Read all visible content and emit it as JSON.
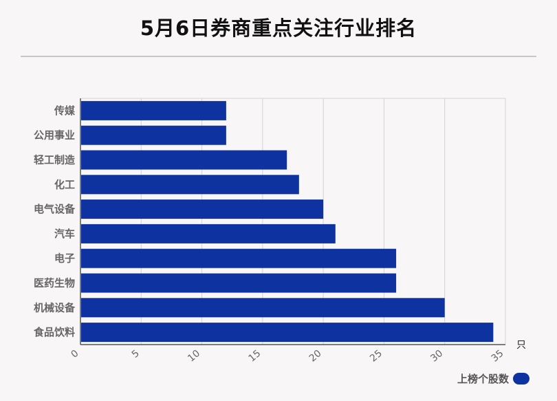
{
  "title": "5月6日券商重点关注行业排名",
  "chart_data": {
    "type": "bar",
    "orientation": "horizontal",
    "categories": [
      "传媒",
      "公用事业",
      "轻工制造",
      "化工",
      "电气设备",
      "汽车",
      "电子",
      "医药生物",
      "机械设备",
      "食品饮料"
    ],
    "series": [
      {
        "name": "上榜个股数",
        "values": [
          12,
          12,
          17,
          18,
          20,
          21,
          26,
          26,
          30,
          34
        ]
      }
    ],
    "xlim": [
      0,
      35
    ],
    "xticks": [
      "0",
      "5",
      "10",
      "15",
      "20",
      "25",
      "30",
      "35"
    ],
    "x_unit": "只",
    "grid": true,
    "legend": "bottom-right"
  },
  "colors": {
    "bar": "#0e33a0",
    "grid": "#d4d1d2",
    "axis": "#555555"
  }
}
